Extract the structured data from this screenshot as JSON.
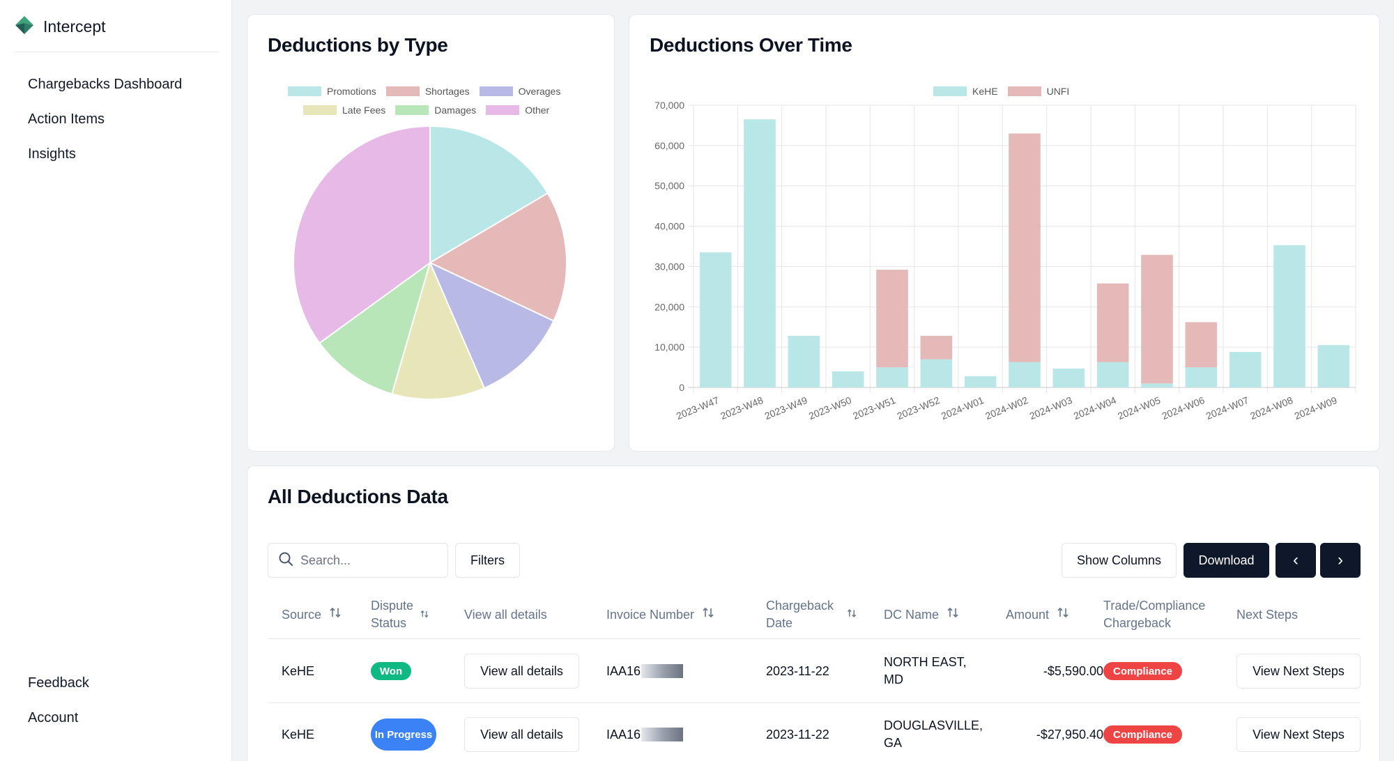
{
  "app": {
    "name": "Intercept"
  },
  "sidebar": {
    "items": [
      {
        "label": "Chargebacks Dashboard"
      },
      {
        "label": "Action Items"
      },
      {
        "label": "Insights"
      }
    ],
    "bottom_items": [
      {
        "label": "Feedback"
      },
      {
        "label": "Account"
      }
    ]
  },
  "pie_card": {
    "title": "Deductions by Type"
  },
  "bar_card": {
    "title": "Deductions Over Time"
  },
  "chart_data": [
    {
      "type": "pie",
      "title": "Deductions by Type",
      "categories": [
        "Promotions",
        "Shortages",
        "Overages",
        "Late Fees",
        "Damages",
        "Other"
      ],
      "values": [
        16.5,
        15.5,
        11.5,
        11.0,
        10.5,
        35.0
      ],
      "colors": [
        "#b9e6e6",
        "#e6b9b9",
        "#b9b9e6",
        "#e6e6b9",
        "#b9e6b9",
        "#e6b9e6"
      ],
      "legend_position": "top"
    },
    {
      "type": "bar",
      "stacked": true,
      "title": "Deductions Over Time",
      "categories": [
        "2023-W47",
        "2023-W48",
        "2023-W49",
        "2023-W50",
        "2023-W51",
        "2023-W52",
        "2024-W01",
        "2024-W02",
        "2024-W03",
        "2024-W04",
        "2024-W05",
        "2024-W06",
        "2024-W07",
        "2024-W08",
        "2024-W09"
      ],
      "series": [
        {
          "name": "KeHE",
          "color": "#b9e6e6",
          "values": [
            33500,
            66500,
            12800,
            4000,
            5000,
            7000,
            2800,
            6300,
            4700,
            6300,
            1000,
            5000,
            8800,
            35300,
            10500
          ]
        },
        {
          "name": "UNFI",
          "color": "#e6b9b9",
          "values": [
            0,
            0,
            0,
            0,
            24200,
            5800,
            0,
            56700,
            0,
            19500,
            31900,
            11200,
            0,
            0,
            0
          ]
        }
      ],
      "ylim": [
        0,
        70000
      ],
      "yticks": [
        "0",
        "10,000",
        "20,000",
        "30,000",
        "40,000",
        "50,000",
        "60,000",
        "70,000"
      ],
      "grid": true,
      "legend_position": "top"
    }
  ],
  "table_card": {
    "title": "All Deductions Data",
    "search_placeholder": "Search...",
    "filters_label": "Filters",
    "show_columns_label": "Show Columns",
    "download_label": "Download",
    "prev_label": "‹",
    "next_label": "›",
    "columns": [
      {
        "label": "Source"
      },
      {
        "label": "Dispute Status"
      },
      {
        "label": "View all details"
      },
      {
        "label": "Invoice Number"
      },
      {
        "label": "Chargeback Date"
      },
      {
        "label": "DC Name"
      },
      {
        "label": "Amount"
      },
      {
        "label": "Trade/Compliance Chargeback"
      },
      {
        "label": "Next Steps"
      }
    ],
    "rows": [
      {
        "source": "KeHE",
        "status": "Won",
        "details": "View all details",
        "invoice": "IAA16",
        "date": "2023-11-22",
        "dc": "NORTH EAST, MD",
        "amount": "-$5,590.00",
        "type": "Compliance",
        "next": "View Next Steps"
      },
      {
        "source": "KeHE",
        "status": "In Progress",
        "details": "View all details",
        "invoice": "IAA16",
        "date": "2023-11-22",
        "dc": "DOUGLASVILLE, GA",
        "amount": "-$27,950.40",
        "type": "Compliance",
        "next": "View Next Steps"
      }
    ]
  }
}
